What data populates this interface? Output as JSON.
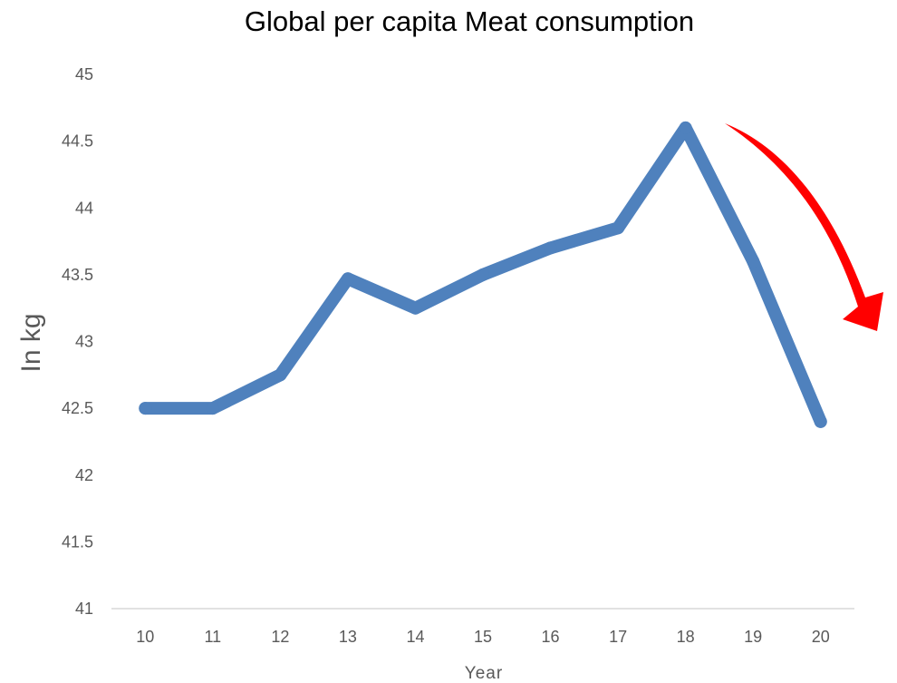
{
  "chart_data": {
    "type": "line",
    "title": "Global per capita Meat consumption",
    "xlabel": "Year",
    "ylabel": "In kg",
    "categories": [
      "10",
      "11",
      "12",
      "13",
      "14",
      "15",
      "16",
      "17",
      "18",
      "19",
      "20"
    ],
    "series": [
      {
        "values": [
          42.5,
          42.5,
          42.75,
          43.47,
          43.25,
          43.5,
          43.7,
          43.85,
          44.6,
          43.6,
          42.4
        ]
      }
    ],
    "ylim": [
      41,
      45
    ],
    "yticks": [
      "41",
      "41.5",
      "42",
      "42.5",
      "43",
      "43.5",
      "44",
      "44.5",
      "45"
    ],
    "grid": false,
    "legend": "none",
    "annotation": "red-downward-curved-arrow",
    "colors": {
      "line": "#4f81bd",
      "arrow": "#ff0000",
      "axis": "#d9d9d9",
      "tick_text": "#595959"
    }
  }
}
